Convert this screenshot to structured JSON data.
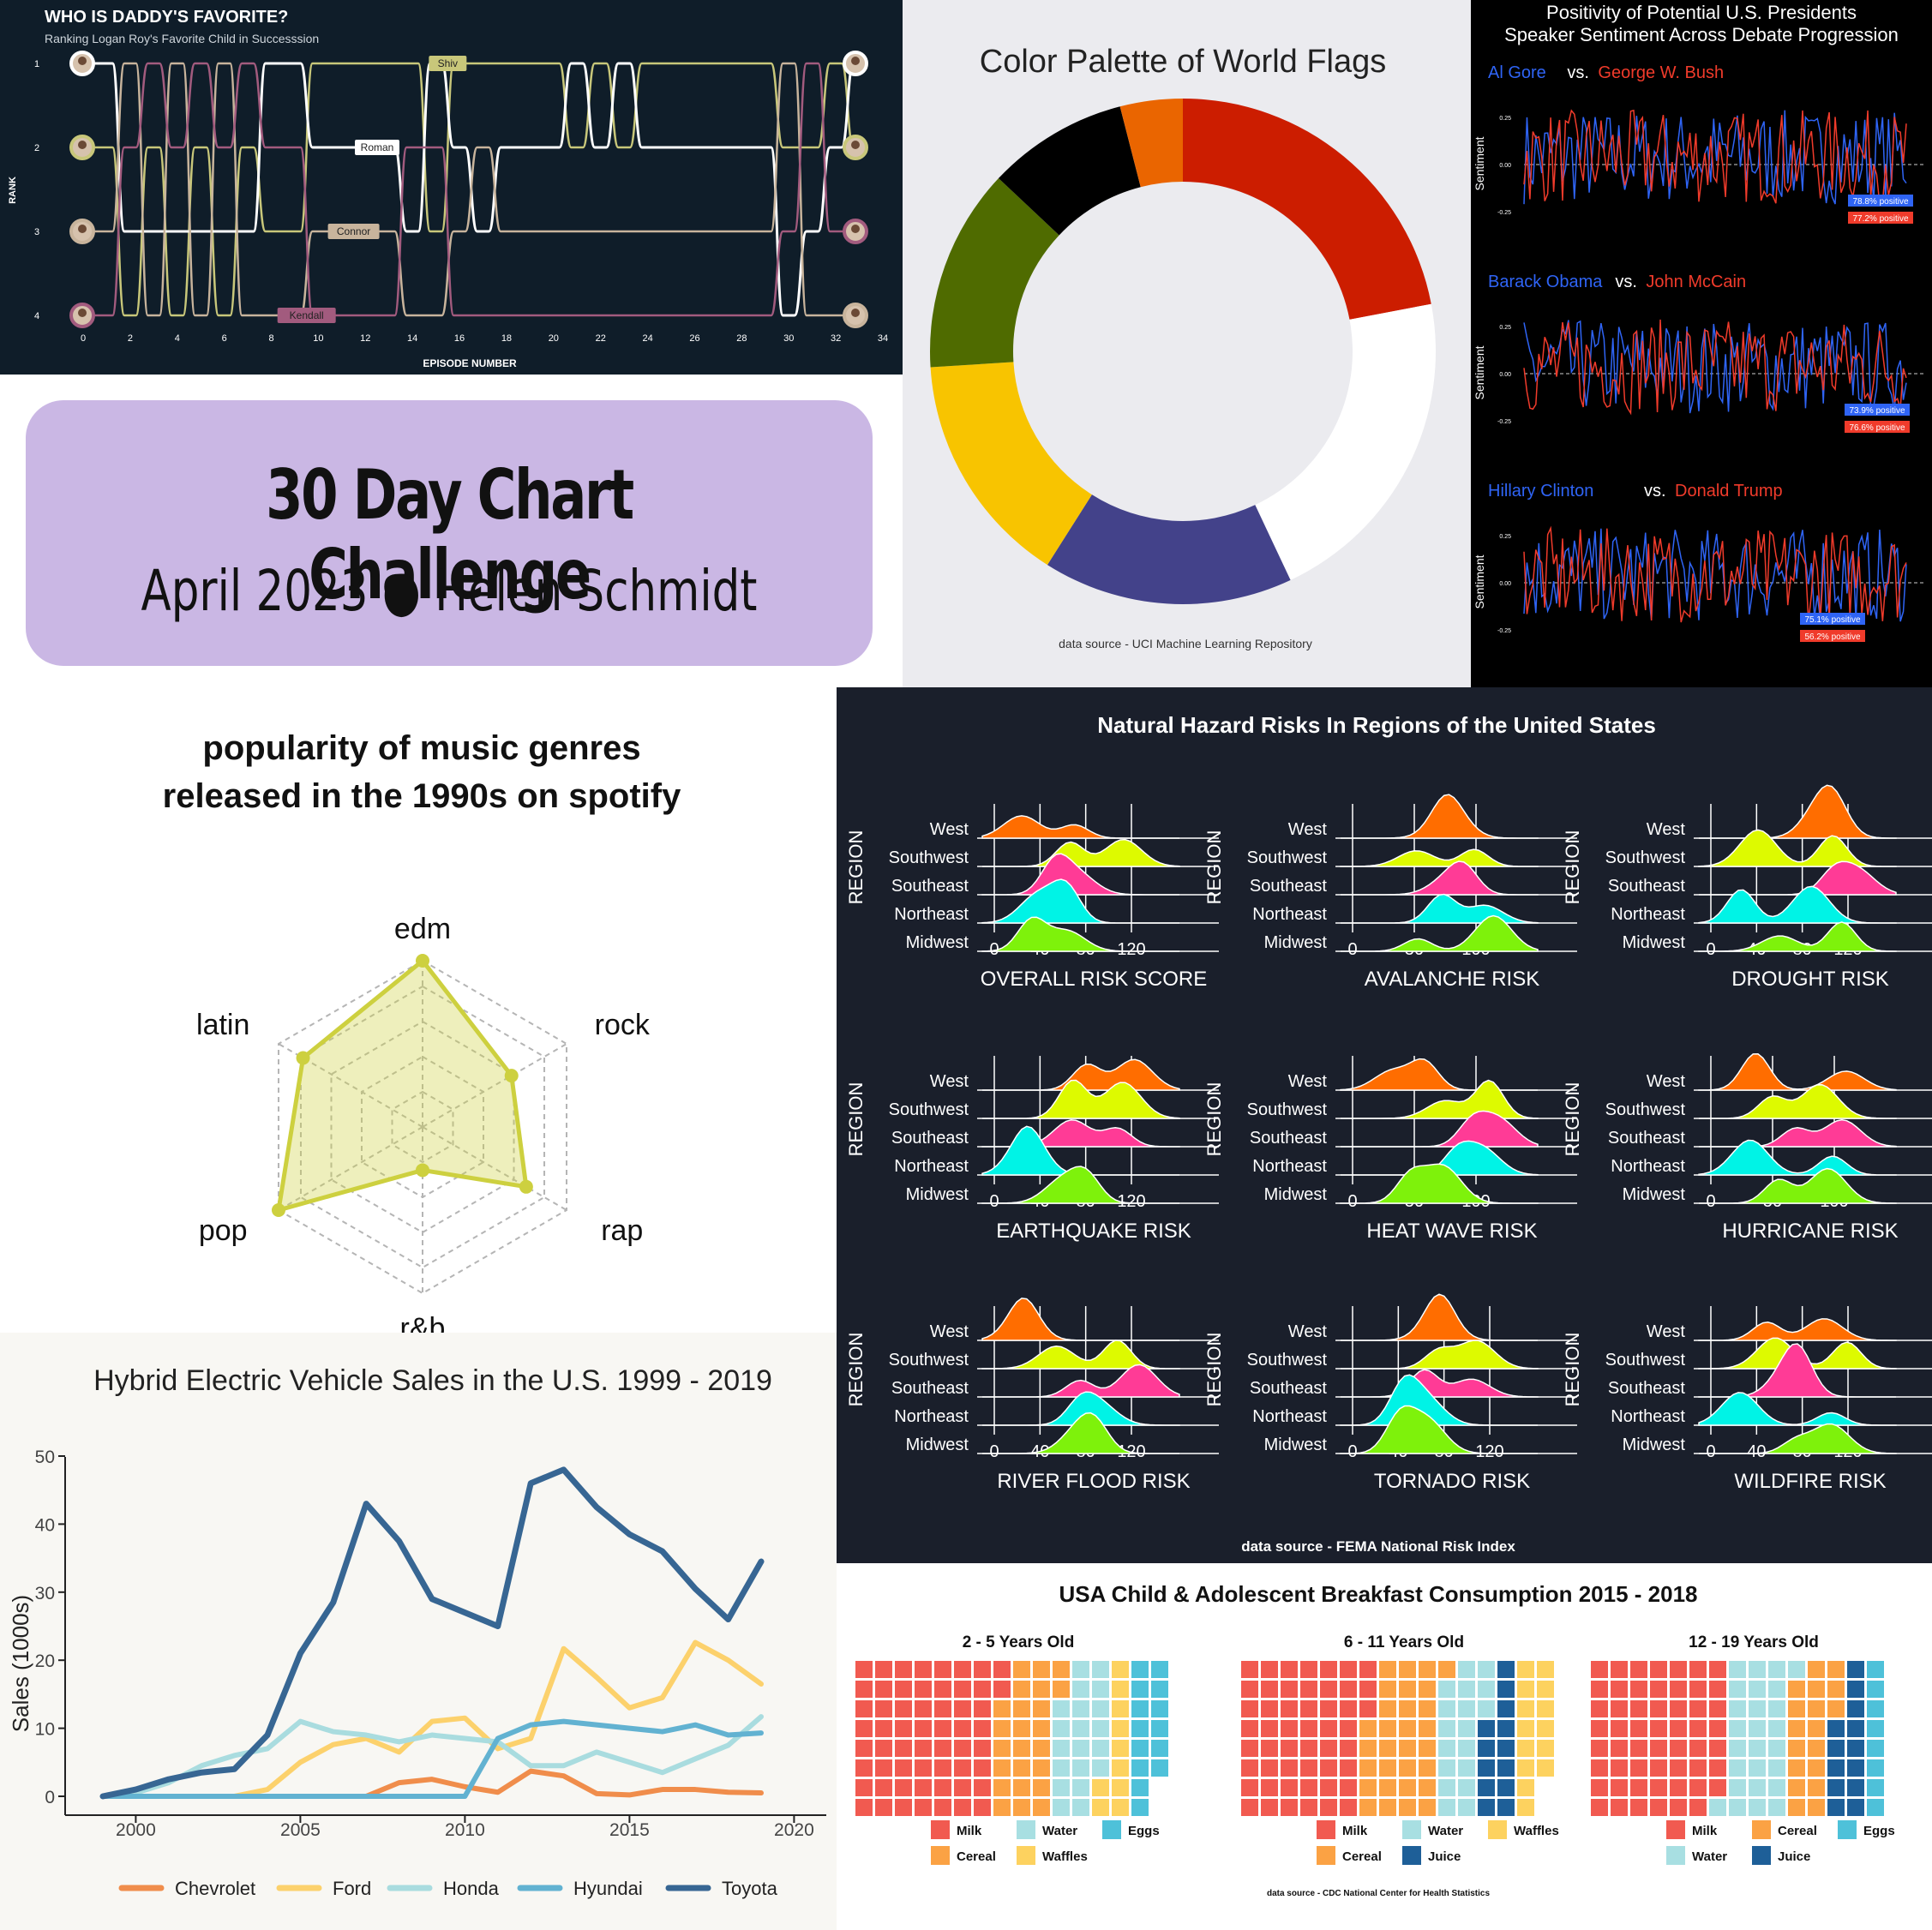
{
  "banner": {
    "title": "30 Day Chart Challenge",
    "subtitle": "April 2023 ● Helen Schmidt"
  },
  "colors": {
    "succession_bg": "#0f1d29",
    "shiv": "#c8c77a",
    "roman": "#ffffff",
    "connor": "#c8b49c",
    "kendall": "#a25b7e",
    "radar": "#cdd03f",
    "hazard_bg": "#1a1f2b",
    "hybrid": {
      "Chevrolet": "#f08d4b",
      "Ford": "#fcd16c",
      "Honda": "#a9dcdf",
      "Hyundai": "#62b2d1",
      "Toyota": "#376693"
    },
    "breakfast": {
      "Milk": "#f15a50",
      "Cereal": "#fba244",
      "Water": "#a8dfe2",
      "Waffles": "#fdd25f",
      "Eggs": "#4ec1d9",
      "Juice": "#1e5f98"
    },
    "ridge": {
      "West": "#ff6d00",
      "Southwest": "#ddfa00",
      "Southeast": "#ff3b96",
      "Northeast": "#00f3e6",
      "Midwest": "#7ef20b"
    }
  },
  "chart_data": [
    {
      "id": "succession",
      "type": "line",
      "title": "WHO IS DADDY'S FAVORITE?",
      "subtitle": "Ranking Logan Roy's Favorite Child in Successsion",
      "xlabel": "EPISODE NUMBER",
      "ylabel": "RANK",
      "xlim": [
        0,
        34
      ],
      "x_ticks": [
        0,
        2,
        4,
        6,
        8,
        10,
        12,
        14,
        16,
        18,
        20,
        22,
        24,
        26,
        28,
        30,
        32,
        34
      ],
      "y_ticks": [
        1,
        2,
        3,
        4
      ],
      "x": [
        0,
        1,
        2,
        3,
        4,
        5,
        6,
        7,
        8,
        9,
        10,
        11,
        12,
        13,
        14,
        15,
        16,
        17,
        18,
        19,
        20,
        21,
        22,
        23,
        24,
        25,
        26,
        27,
        28,
        29,
        30,
        31,
        32,
        33
      ],
      "series": [
        {
          "name": "Shiv",
          "values": [
            2,
            2,
            4,
            2,
            4,
            2,
            4,
            2,
            3,
            3,
            1,
            1,
            1,
            1,
            1,
            3,
            1,
            1,
            1,
            1,
            1,
            2,
            1,
            2,
            1,
            1,
            1,
            1,
            1,
            1,
            2,
            2,
            1,
            2
          ]
        },
        {
          "name": "Roman",
          "values": [
            1,
            1,
            3,
            3,
            3,
            3,
            3,
            3,
            1,
            1,
            2,
            2,
            2,
            2,
            3,
            1,
            2,
            3,
            2,
            2,
            2,
            1,
            2,
            1,
            2,
            2,
            2,
            2,
            2,
            2,
            4,
            3,
            2,
            1
          ]
        },
        {
          "name": "Connor",
          "values": [
            3,
            3,
            1,
            4,
            1,
            4,
            1,
            4,
            4,
            4,
            3,
            3,
            3,
            3,
            4,
            4,
            3,
            2,
            3,
            3,
            3,
            3,
            3,
            3,
            3,
            3,
            3,
            3,
            3,
            3,
            1,
            4,
            4,
            4
          ]
        },
        {
          "name": "Kendall",
          "values": [
            4,
            4,
            2,
            1,
            2,
            1,
            2,
            1,
            2,
            2,
            4,
            4,
            4,
            4,
            2,
            2,
            4,
            4,
            4,
            4,
            4,
            4,
            4,
            4,
            4,
            4,
            4,
            4,
            4,
            4,
            3,
            1,
            3,
            3
          ]
        }
      ]
    },
    {
      "id": "flags",
      "type": "pie",
      "title": "Color Palette of World Flags",
      "caption": "data source - UCI Machine Learning Repository",
      "categories": [
        "red",
        "white",
        "blue",
        "gold",
        "green",
        "black",
        "orange"
      ],
      "colors": [
        "#cc1d00",
        "#ffffff",
        "#43428a",
        "#f8c400",
        "#4f6b00",
        "#000000",
        "#ea6500"
      ],
      "values": [
        22.0,
        21.0,
        16.0,
        15.0,
        13.0,
        9.0,
        4.0
      ]
    },
    {
      "id": "debates",
      "type": "line",
      "title": "Positivity of Potential U.S. Presidents",
      "subtitle": "Speaker Sentiment Across Debate Progression",
      "ylabel": "Sentiment",
      "y_ticks": [
        "0.25",
        "0.00",
        "-0.25"
      ],
      "series_color_a": "#2f64f5",
      "series_color_b": "#f03b2b",
      "panels": [
        {
          "a": "Al Gore",
          "vs": "vs.",
          "b": "George W. Bush",
          "a_pos": "78.8% positive",
          "b_pos": "77.2% positive"
        },
        {
          "a": "Barack Obama",
          "vs": "vs.",
          "b": "John McCain",
          "a_pos": "73.9% positive",
          "b_pos": "76.6% positive"
        },
        {
          "a": "Hillary Clinton",
          "vs": "vs.",
          "b": "Donald Trump",
          "a_pos": "75.1% positive",
          "b_pos": "56.2% positive"
        }
      ]
    },
    {
      "id": "radar",
      "type": "radar",
      "title_line1": "popularity of music genres",
      "title_line2": "released in the 1990s on spotify",
      "categories": [
        "edm",
        "rock",
        "rap",
        "r&b",
        "pop",
        "latin"
      ],
      "values": [
        1.0,
        0.55,
        0.67,
        0.0,
        1.0,
        0.8
      ]
    },
    {
      "id": "hazards",
      "type": "area",
      "title": "Natural Hazard Risks In Regions of the United States",
      "caption": "data source - FEMA National Risk Index",
      "ylabel": "REGION",
      "regions": [
        "West",
        "Southwest",
        "Southeast",
        "Northeast",
        "Midwest"
      ],
      "panels": [
        {
          "label": "OVERALL RISK SCORE",
          "ticks": [
            "0",
            "40",
            "80",
            "120"
          ]
        },
        {
          "label": "AVALANCHE RISK",
          "ticks": [
            "0",
            "50",
            "100"
          ]
        },
        {
          "label": "DROUGHT RISK",
          "ticks": [
            "0",
            "40",
            "80",
            "120"
          ]
        },
        {
          "label": "EARTHQUAKE RISK",
          "ticks": [
            "0",
            "40",
            "80",
            "120"
          ]
        },
        {
          "label": "HEAT WAVE RISK",
          "ticks": [
            "0",
            "50",
            "100"
          ]
        },
        {
          "label": "HURRICANE RISK",
          "ticks": [
            "0",
            "50",
            "100"
          ]
        },
        {
          "label": "RIVER FLOOD RISK",
          "ticks": [
            "0",
            "40",
            "80",
            "120"
          ]
        },
        {
          "label": "TORNADO RISK",
          "ticks": [
            "0",
            "40",
            "80",
            "120"
          ]
        },
        {
          "label": "WILDFIRE RISK",
          "ticks": [
            "0",
            "40",
            "80",
            "120"
          ]
        }
      ]
    },
    {
      "id": "hybrid",
      "type": "line",
      "title": "Hybrid Electric Vehicle Sales in the U.S. 1999 - 2019",
      "xlabel": "",
      "ylabel": "Sales (1000s)",
      "xlim": [
        1999,
        2019
      ],
      "ylim": [
        0,
        50
      ],
      "x_ticks": [
        "2000",
        "2005",
        "2010",
        "2015",
        "2020"
      ],
      "y_ticks": [
        "0",
        "10",
        "20",
        "30",
        "40",
        "50"
      ],
      "x": [
        1999,
        2000,
        2001,
        2002,
        2003,
        2004,
        2005,
        2006,
        2007,
        2008,
        2009,
        2010,
        2011,
        2012,
        2013,
        2014,
        2015,
        2016,
        2017,
        2018,
        2019
      ],
      "series": [
        {
          "name": "Chevrolet",
          "values": [
            0,
            0,
            0,
            0,
            0,
            0,
            0,
            0,
            0,
            2.0,
            2.5,
            1.4,
            0.6,
            3.7,
            3.0,
            0.4,
            0.2,
            1.0,
            1.0,
            0.6,
            0.5
          ]
        },
        {
          "name": "Ford",
          "values": [
            0,
            0,
            0,
            0,
            0,
            1.0,
            5.0,
            7.6,
            8.5,
            6.5,
            11.0,
            11.5,
            7.0,
            8.5,
            21.7,
            17.5,
            13.0,
            14.5,
            22.6,
            20.0,
            16.5
          ]
        },
        {
          "name": "Honda",
          "values": [
            0,
            0.5,
            2.0,
            4.5,
            6.0,
            7.0,
            11.0,
            9.5,
            9.0,
            8.0,
            9.0,
            8.5,
            8.0,
            4.5,
            4.5,
            6.5,
            5.0,
            3.5,
            5.5,
            7.5,
            11.7
          ]
        },
        {
          "name": "Hyundai",
          "values": [
            0,
            0,
            0,
            0,
            0,
            0,
            0,
            0,
            0,
            0,
            0,
            0,
            8.5,
            10.5,
            11.0,
            10.5,
            10.0,
            9.5,
            10.5,
            9.0,
            9.3
          ]
        },
        {
          "name": "Toyota",
          "values": [
            0,
            1.0,
            2.5,
            3.5,
            4.0,
            9.0,
            21.0,
            28.5,
            43.0,
            37.5,
            29.0,
            27.0,
            25.0,
            46.0,
            48.0,
            42.5,
            38.5,
            36.0,
            30.5,
            26.0,
            34.5
          ]
        }
      ]
    },
    {
      "id": "breakfast",
      "type": "table",
      "title": "USA Child & Adolescent Breakfast Consumption 2015 - 2018",
      "caption": "data source - CDC National Center for Health Statistics",
      "groups": [
        {
          "label": "2 - 5 Years Old",
          "cells": [
            {
              "name": "Milk",
              "count": 58
            },
            {
              "name": "Cereal",
              "count": 24
            },
            {
              "name": "Water",
              "count": 20
            },
            {
              "name": "Waffles",
              "count": 10
            },
            {
              "name": "Eggs",
              "count": 14
            }
          ],
          "legend_rows": [
            [
              "Milk",
              "Water",
              "Eggs"
            ],
            [
              "Cereal",
              "Waffles"
            ]
          ]
        },
        {
          "label": "6 - 11 Years Old",
          "cells": [
            {
              "name": "Milk",
              "count": 51
            },
            {
              "name": "Cereal",
              "count": 30
            },
            {
              "name": "Water",
              "count": 18
            },
            {
              "name": "Juice",
              "count": 13
            },
            {
              "name": "Waffles",
              "count": 14
            }
          ],
          "legend_rows": [
            [
              "Milk",
              "Water",
              "Waffles"
            ],
            [
              "Cereal",
              "Juice"
            ]
          ]
        },
        {
          "label": "12 - 19 Years Old",
          "cells": [
            {
              "name": "Milk",
              "count": 55
            },
            {
              "name": "Water",
              "count": 26
            },
            {
              "name": "Cereal",
              "count": 18
            },
            {
              "name": "Juice",
              "count": 13
            },
            {
              "name": "Eggs",
              "count": 8
            }
          ],
          "legend_rows": [
            [
              "Milk",
              "Cereal",
              "Eggs"
            ],
            [
              "Water",
              "Juice"
            ]
          ]
        }
      ]
    }
  ]
}
